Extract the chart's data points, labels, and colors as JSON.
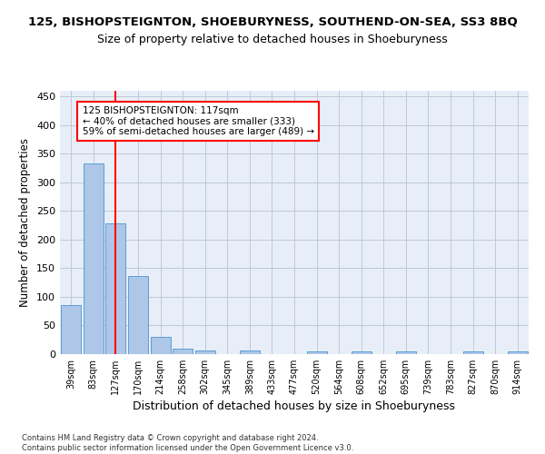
{
  "title1": "125, BISHOPSTEIGNTON, SHOEBURYNESS, SOUTHEND-ON-SEA, SS3 8BQ",
  "title2": "Size of property relative to detached houses in Shoeburyness",
  "xlabel": "Distribution of detached houses by size in Shoeburyness",
  "ylabel": "Number of detached properties",
  "footnote": "Contains HM Land Registry data © Crown copyright and database right 2024.\nContains public sector information licensed under the Open Government Licence v3.0.",
  "categories": [
    "39sqm",
    "83sqm",
    "127sqm",
    "170sqm",
    "214sqm",
    "258sqm",
    "302sqm",
    "345sqm",
    "389sqm",
    "433sqm",
    "477sqm",
    "520sqm",
    "564sqm",
    "608sqm",
    "652sqm",
    "695sqm",
    "739sqm",
    "783sqm",
    "827sqm",
    "870sqm",
    "914sqm"
  ],
  "values": [
    86,
    333,
    229,
    136,
    30,
    10,
    6,
    0,
    6,
    0,
    0,
    4,
    0,
    4,
    0,
    4,
    0,
    0,
    4,
    0,
    4
  ],
  "bar_color": "#aec6e8",
  "bar_edge_color": "#5a9fd4",
  "vline_x": 2,
  "vline_color": "red",
  "annotation_text": "125 BISHOPSTEIGNTON: 117sqm\n← 40% of detached houses are smaller (333)\n59% of semi-detached houses are larger (489) →",
  "annotation_box_color": "white",
  "annotation_box_edge_color": "red",
  "ylim": [
    0,
    460
  ],
  "yticks": [
    0,
    50,
    100,
    150,
    200,
    250,
    300,
    350,
    400,
    450
  ],
  "background_color": "#e8eef8",
  "grid_color": "#c0c8d8",
  "title1_fontsize": 9.5,
  "title2_fontsize": 9,
  "xlabel_fontsize": 9,
  "ylabel_fontsize": 8.5,
  "annot_fontsize": 7.5,
  "tick_fontsize": 7,
  "ytick_fontsize": 8,
  "footnote_fontsize": 6
}
